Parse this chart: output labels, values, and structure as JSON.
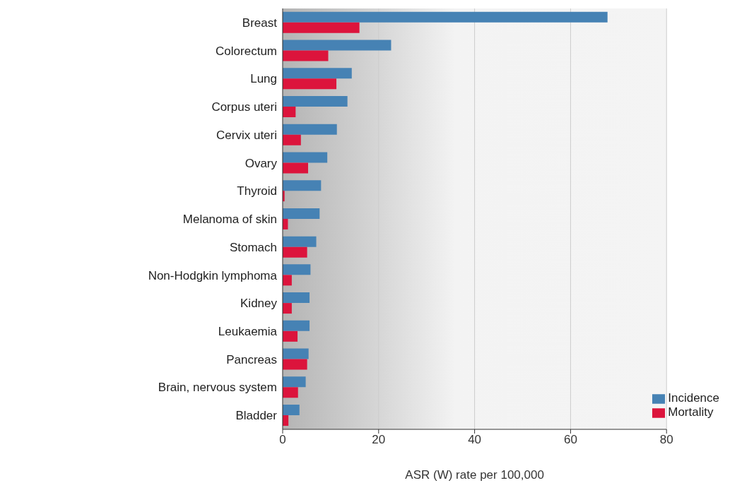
{
  "chart_data": {
    "type": "bar",
    "orientation": "horizontal",
    "xlabel": "ASR (W) rate per 100,000",
    "categories": [
      "Breast",
      "Colorectum",
      "Lung",
      "Corpus uteri",
      "Cervix uteri",
      "Ovary",
      "Thyroid",
      "Melanoma of skin",
      "Stomach",
      "Non-Hodgkin lymphoma",
      "Kidney",
      "Leukaemia",
      "Pancreas",
      "Brain, nervous system",
      "Bladder"
    ],
    "series": [
      {
        "name": "Incidence",
        "color": "#4682b4",
        "values": [
          67.7,
          22.6,
          14.4,
          13.5,
          11.3,
          9.3,
          8.0,
          7.7,
          7.0,
          5.8,
          5.6,
          5.6,
          5.4,
          4.8,
          3.5
        ]
      },
      {
        "name": "Mortality",
        "color": "#dc143c",
        "values": [
          16.0,
          9.5,
          11.2,
          2.7,
          3.8,
          5.3,
          0.4,
          1.1,
          5.1,
          1.9,
          1.9,
          3.1,
          5.1,
          3.2,
          1.2
        ]
      }
    ],
    "xlim": [
      0,
      80
    ],
    "xticks": [
      0,
      20,
      40,
      60,
      80
    ],
    "grid": "x",
    "legend": "bottom right"
  }
}
